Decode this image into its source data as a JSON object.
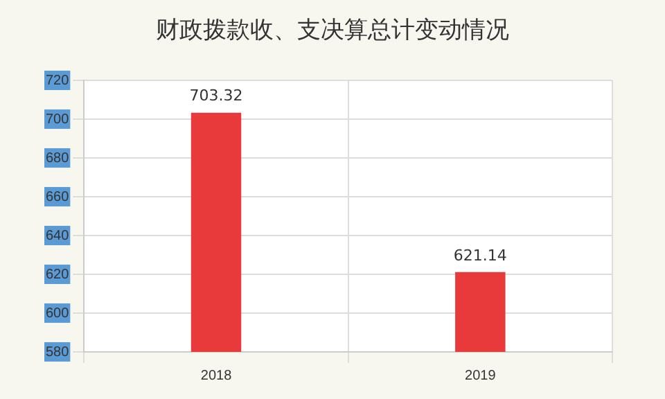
{
  "chart_data": {
    "type": "bar",
    "title": "财政拨款收、支决算总计变动情况",
    "categories": [
      "2018",
      "2019"
    ],
    "values": [
      703.32,
      621.14
    ],
    "color": "#e83a3a",
    "ylim": [
      580,
      720
    ],
    "yticks": [
      580,
      600,
      620,
      640,
      660,
      680,
      700,
      720
    ],
    "grid": true,
    "data_labels": true
  }
}
